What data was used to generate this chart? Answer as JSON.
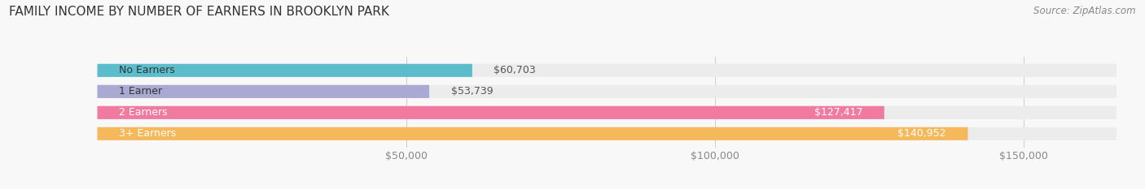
{
  "title": "FAMILY INCOME BY NUMBER OF EARNERS IN BROOKLYN PARK",
  "source": "Source: ZipAtlas.com",
  "categories": [
    "No Earners",
    "1 Earner",
    "2 Earners",
    "3+ Earners"
  ],
  "values": [
    60703,
    53739,
    127417,
    140952
  ],
  "bar_colors": [
    "#5bbccc",
    "#a9a9d4",
    "#f07aa0",
    "#f5b85a"
  ],
  "bar_height": 0.62,
  "xlim": [
    0,
    165000
  ],
  "xticks": [
    50000,
    100000,
    150000
  ],
  "xtick_labels": [
    "$50,000",
    "$100,000",
    "$150,000"
  ],
  "bg_bar_color": "#ececec",
  "title_fontsize": 11,
  "source_fontsize": 8.5,
  "label_fontsize": 9,
  "tick_fontsize": 9,
  "category_fontsize": 9
}
